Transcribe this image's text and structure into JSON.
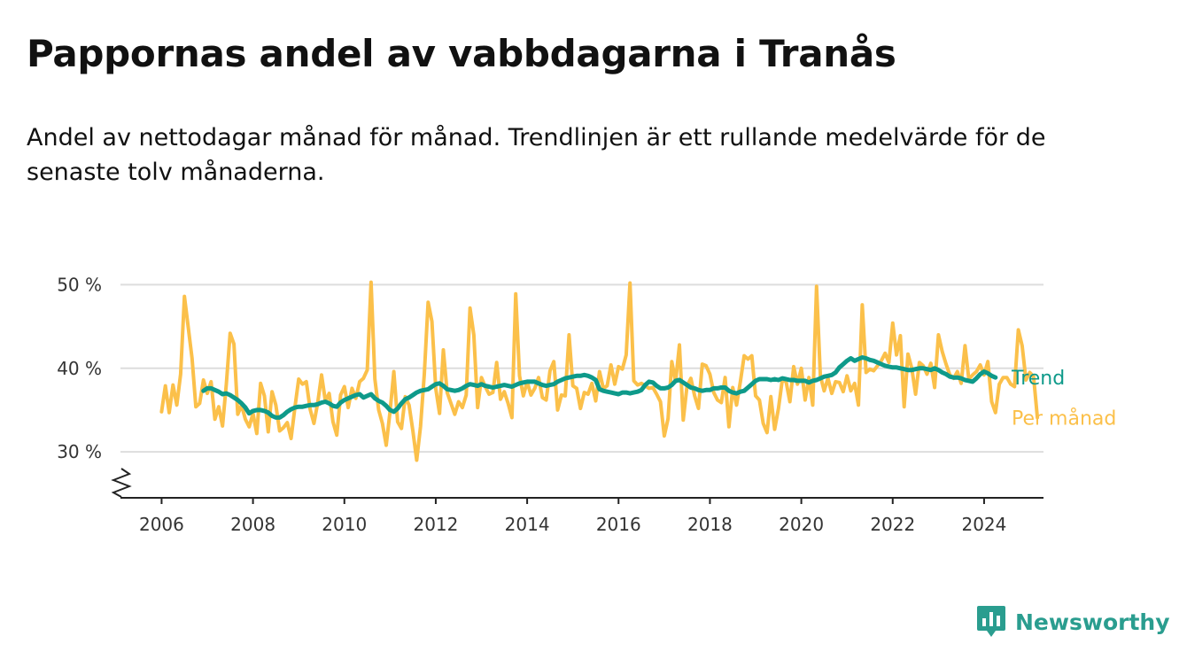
{
  "title": "Pappornas andel av vabbdagarna i Tranås",
  "subtitle": "Andel av nettodagar månad för månad. Trendlinjen är ett rullande medelvärde för de senaste tolv månaderna.",
  "brand": {
    "name": "Newsworthy",
    "color": "#2a9d8f"
  },
  "colors": {
    "monthly": "#fbc04a",
    "trend": "#0e9a8a",
    "grid": "#dddddd",
    "axis": "#222222"
  },
  "chart_data": {
    "type": "line",
    "y_unit": "%",
    "y_ticks": [
      "30 %",
      "40 %",
      "50 %"
    ],
    "y_tick_values": [
      30,
      40,
      50
    ],
    "x_ticks": [
      "2006",
      "2008",
      "2010",
      "2012",
      "2014",
      "2016",
      "2018",
      "2020",
      "2022",
      "2024"
    ],
    "x_tick_values": [
      2006,
      2008,
      2010,
      2012,
      2014,
      2016,
      2018,
      2020,
      2022,
      2024
    ],
    "xlim": [
      2005.1,
      2025.3
    ],
    "ylim": [
      24.5,
      51
    ],
    "y_axis_broken": true,
    "grid": true,
    "series": [
      {
        "name": "Per månad",
        "x_start": "2006-01",
        "y": [
          34.8,
          37.9,
          34.7,
          38.0,
          35.6,
          39.3,
          48.6,
          44.9,
          41.2,
          35.4,
          35.8,
          38.6,
          37.0,
          38.4,
          33.9,
          35.4,
          33.1,
          38.1,
          44.2,
          42.9,
          34.5,
          35.6,
          33.9,
          33.0,
          34.6,
          32.2,
          38.2,
          36.7,
          32.4,
          37.2,
          35.6,
          32.5,
          32.9,
          33.5,
          31.6,
          35.3,
          38.7,
          38.1,
          38.4,
          35.1,
          33.4,
          35.9,
          39.2,
          36.1,
          37.0,
          33.6,
          32.0,
          36.8,
          37.8,
          35.3,
          37.6,
          36.4,
          38.4,
          38.8,
          39.8,
          50.3,
          38.7,
          35.0,
          33.4,
          30.8,
          34.8,
          39.6,
          33.6,
          32.8,
          36.6,
          35.6,
          32.5,
          29.0,
          33.0,
          39.3,
          47.9,
          45.6,
          37.6,
          34.6,
          42.2,
          37.1,
          35.8,
          34.5,
          36.0,
          35.3,
          36.8,
          47.2,
          44.0,
          35.3,
          38.9,
          37.8,
          36.9,
          37.1,
          40.7,
          36.3,
          37.2,
          35.8,
          34.1,
          48.9,
          39.1,
          36.7,
          38.4,
          36.8,
          37.6,
          38.9,
          36.5,
          36.2,
          39.7,
          40.8,
          35.0,
          36.8,
          36.7,
          44.0,
          37.9,
          37.6,
          35.2,
          37.1,
          36.9,
          38.2,
          36.1,
          39.6,
          37.6,
          37.9,
          40.4,
          38.1,
          40.2,
          39.9,
          41.6,
          50.2,
          38.5,
          38.0,
          38.2,
          37.9,
          37.6,
          37.7,
          36.9,
          36.0,
          31.9,
          34.0,
          40.8,
          38.4,
          42.8,
          33.8,
          37.9,
          38.8,
          36.7,
          35.2,
          40.5,
          40.3,
          39.3,
          37.1,
          36.2,
          35.9,
          38.9,
          33.0,
          37.7,
          35.6,
          38.4,
          41.5,
          41.1,
          41.5,
          36.7,
          36.2,
          33.4,
          32.3,
          36.6,
          32.7,
          35.2,
          38.6,
          38.4,
          36.0,
          40.2,
          38.1,
          40.0,
          36.2,
          38.9,
          35.6,
          49.8,
          39.1,
          37.3,
          38.8,
          37.0,
          38.4,
          38.3,
          37.2,
          39.1,
          37.3,
          38.2,
          35.6,
          47.6,
          39.5,
          39.9,
          39.7,
          40.3,
          40.9,
          41.8,
          40.7,
          45.4,
          41.6,
          43.9,
          35.4,
          41.7,
          40.0,
          36.9,
          40.7,
          40.3,
          39.3,
          40.6,
          37.7,
          44.0,
          42.0,
          40.5,
          39.2,
          38.8,
          39.6,
          38.2,
          42.7,
          38.7,
          39.2,
          39.6,
          40.4,
          39.2,
          40.8,
          36.0,
          34.7,
          38.1,
          38.9,
          38.9,
          38.1,
          37.8,
          44.6,
          42.7,
          38.6,
          39.5,
          39.0,
          34.1
        ]
      },
      {
        "name": "Trend",
        "x_start": "2006-12",
        "y": [
          37.3,
          37.6,
          37.6,
          37.4,
          37.2,
          36.9,
          37.0,
          36.8,
          36.5,
          36.2,
          35.8,
          35.3,
          34.6,
          34.9,
          35.0,
          35.0,
          34.9,
          34.7,
          34.3,
          34.1,
          34.1,
          34.4,
          34.8,
          35.1,
          35.3,
          35.4,
          35.4,
          35.5,
          35.6,
          35.6,
          35.7,
          35.9,
          36.0,
          35.8,
          35.5,
          35.4,
          35.9,
          36.2,
          36.4,
          36.6,
          36.8,
          36.9,
          36.5,
          36.7,
          36.9,
          36.4,
          36.1,
          35.9,
          35.5,
          35.0,
          34.8,
          35.2,
          35.8,
          36.3,
          36.5,
          36.8,
          37.1,
          37.3,
          37.4,
          37.5,
          37.8,
          38.1,
          38.2,
          37.9,
          37.5,
          37.4,
          37.3,
          37.4,
          37.6,
          37.9,
          38.1,
          38.0,
          37.9,
          38.1,
          37.9,
          37.8,
          37.7,
          37.8,
          37.9,
          38.0,
          37.9,
          37.8,
          38.0,
          38.2,
          38.3,
          38.4,
          38.4,
          38.4,
          38.2,
          38.0,
          37.9,
          38.0,
          38.1,
          38.4,
          38.6,
          38.8,
          38.9,
          39.0,
          39.1,
          39.1,
          39.2,
          39.1,
          38.9,
          38.6,
          37.5,
          37.3,
          37.2,
          37.1,
          37.0,
          36.9,
          37.1,
          37.1,
          37.0,
          37.1,
          37.2,
          37.4,
          38.0,
          38.4,
          38.3,
          37.9,
          37.6,
          37.6,
          37.7,
          38.0,
          38.5,
          38.6,
          38.3,
          38.0,
          37.7,
          37.6,
          37.4,
          37.3,
          37.4,
          37.4,
          37.6,
          37.6,
          37.7,
          37.7,
          37.3,
          37.1,
          37.0,
          37.2,
          37.3,
          37.7,
          38.1,
          38.5,
          38.7,
          38.7,
          38.7,
          38.6,
          38.7,
          38.6,
          38.8,
          38.7,
          38.6,
          38.6,
          38.5,
          38.5,
          38.5,
          38.3,
          38.5,
          38.6,
          38.8,
          39.0,
          39.1,
          39.2,
          39.5,
          40.1,
          40.5,
          40.9,
          41.2,
          40.9,
          41.1,
          41.3,
          41.2,
          41.0,
          40.9,
          40.7,
          40.5,
          40.3,
          40.2,
          40.1,
          40.1,
          40.0,
          39.9,
          39.8,
          39.8,
          39.9,
          40.0,
          40.0,
          39.9,
          39.8,
          40.0,
          39.8,
          39.5,
          39.3,
          39.0,
          38.9,
          38.9,
          38.8,
          38.6,
          38.5,
          38.4,
          38.8,
          39.3,
          39.6,
          39.4,
          39.1,
          38.9
        ]
      }
    ]
  }
}
